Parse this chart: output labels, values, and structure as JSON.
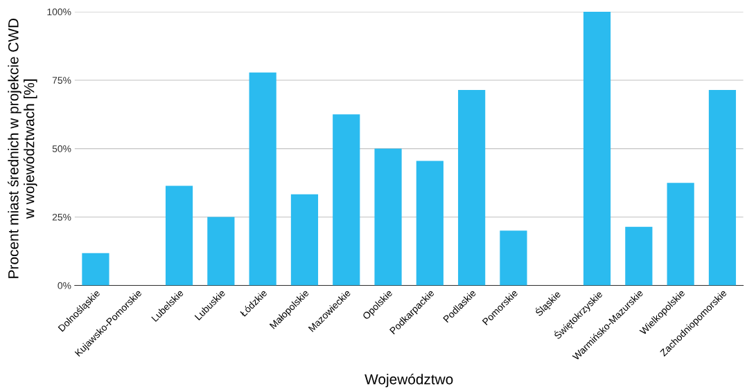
{
  "chart_data": {
    "type": "bar",
    "xlabel": "Województwo",
    "ylabel": "Procent miast średnich w projekcie CWD\nw województwach [%]",
    "categories": [
      "Dolnośląskie",
      "Kujawsko-Pomorskie",
      "Lubelskie",
      "Lubuskie",
      "Łódzkie",
      "Małopolskie",
      "Mazowieckie",
      "Opolskie",
      "Podkarpackie",
      "Podlaskie",
      "Pomorskie",
      "Śląskie",
      "Świętokrzyskie",
      "Warmińsko-Mazurskie",
      "Wielkopolskie",
      "Zachodniopomorskie"
    ],
    "values": [
      11.8,
      0,
      36.4,
      25,
      77.8,
      33.3,
      62.5,
      50,
      45.5,
      71.4,
      20,
      0,
      100,
      21.4,
      37.5,
      71.4
    ],
    "color": "#2bbbef",
    "ylim": [
      0,
      100
    ],
    "yticks": [
      {
        "value": 0,
        "label": "0%"
      },
      {
        "value": 25,
        "label": "25%"
      },
      {
        "value": 50,
        "label": "50%"
      },
      {
        "value": 75,
        "label": "75%"
      },
      {
        "value": 100,
        "label": "100%"
      }
    ],
    "grid": "y",
    "legend": false
  }
}
